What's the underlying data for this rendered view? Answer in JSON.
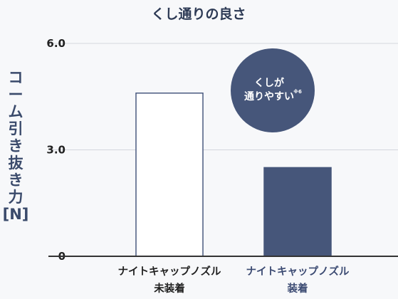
{
  "chart_data": {
    "type": "bar",
    "title": "くし通りの良さ",
    "ylabel": "コーム引き抜き力[N]",
    "ylabel_lines": [
      "コ",
      "ー",
      "ム",
      "引",
      "き",
      "抜",
      "き",
      "力",
      "[N]"
    ],
    "ylim": [
      0,
      6.0
    ],
    "yticks": [
      "0",
      "3.0",
      "6.0"
    ],
    "grid": true,
    "categories": [
      {
        "lines": [
          "ナイトキャップノズル",
          "未装着"
        ],
        "color": "#1f1f1f"
      },
      {
        "lines": [
          "ナイトキャップノズル",
          "装着"
        ],
        "color": "#3b4a72"
      }
    ],
    "values": [
      4.6,
      2.5
    ],
    "bar_styles": [
      {
        "fill": "#ffffff",
        "stroke": "#4a5a80"
      },
      {
        "fill": "#46567a",
        "stroke": "#46567a"
      }
    ],
    "annotation": {
      "lines": [
        "くしが",
        "通りやすい"
      ],
      "superscript": "※6",
      "color": "#46567a"
    }
  }
}
